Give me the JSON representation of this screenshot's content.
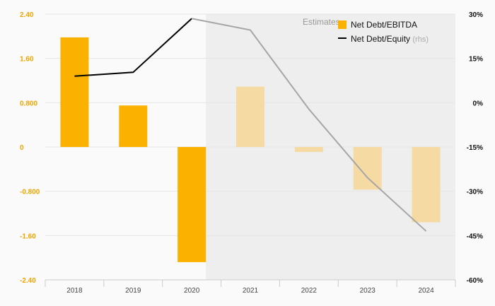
{
  "chart_data": {
    "type": "bar",
    "categories": [
      "2018",
      "2019",
      "2020",
      "2021",
      "2022",
      "2023",
      "2024"
    ],
    "estimate_start_index": 3,
    "estimate_label": "Estimates",
    "left_axis": {
      "ylim": [
        -2.4,
        2.4
      ],
      "ticks": [
        2.4,
        1.6,
        0.8,
        0,
        -0.8,
        -1.6,
        -2.4
      ],
      "tick_labels": [
        "2.40",
        "1.60",
        "0.800",
        "0",
        "-0.800",
        "-1.60",
        "-2.40"
      ]
    },
    "right_axis": {
      "ylim": [
        -60,
        30
      ],
      "ticks": [
        30,
        15,
        0,
        -15,
        -30,
        -45,
        -60
      ],
      "tick_labels": [
        "30%",
        "15%",
        "0%",
        "-15%",
        "-30%",
        "-45%",
        "-60%"
      ]
    },
    "series": [
      {
        "name": "Net Debt/EBITDA",
        "kind": "bar",
        "axis": "left",
        "values": [
          1.98,
          0.75,
          -2.08,
          1.09,
          -0.09,
          -0.77,
          -1.36
        ],
        "color": "#fbb100",
        "estimate_color": "#f5dba3"
      },
      {
        "name": "Net Debt/Equity",
        "name_suffix": "(rhs)",
        "kind": "line",
        "axis": "right",
        "values": [
          9.0,
          10.3,
          28.5,
          24.6,
          -2.2,
          -25.4,
          -43.5
        ],
        "color": "#000000",
        "estimate_color": "#a6a6a6"
      }
    ],
    "legend_position": "top-right"
  }
}
